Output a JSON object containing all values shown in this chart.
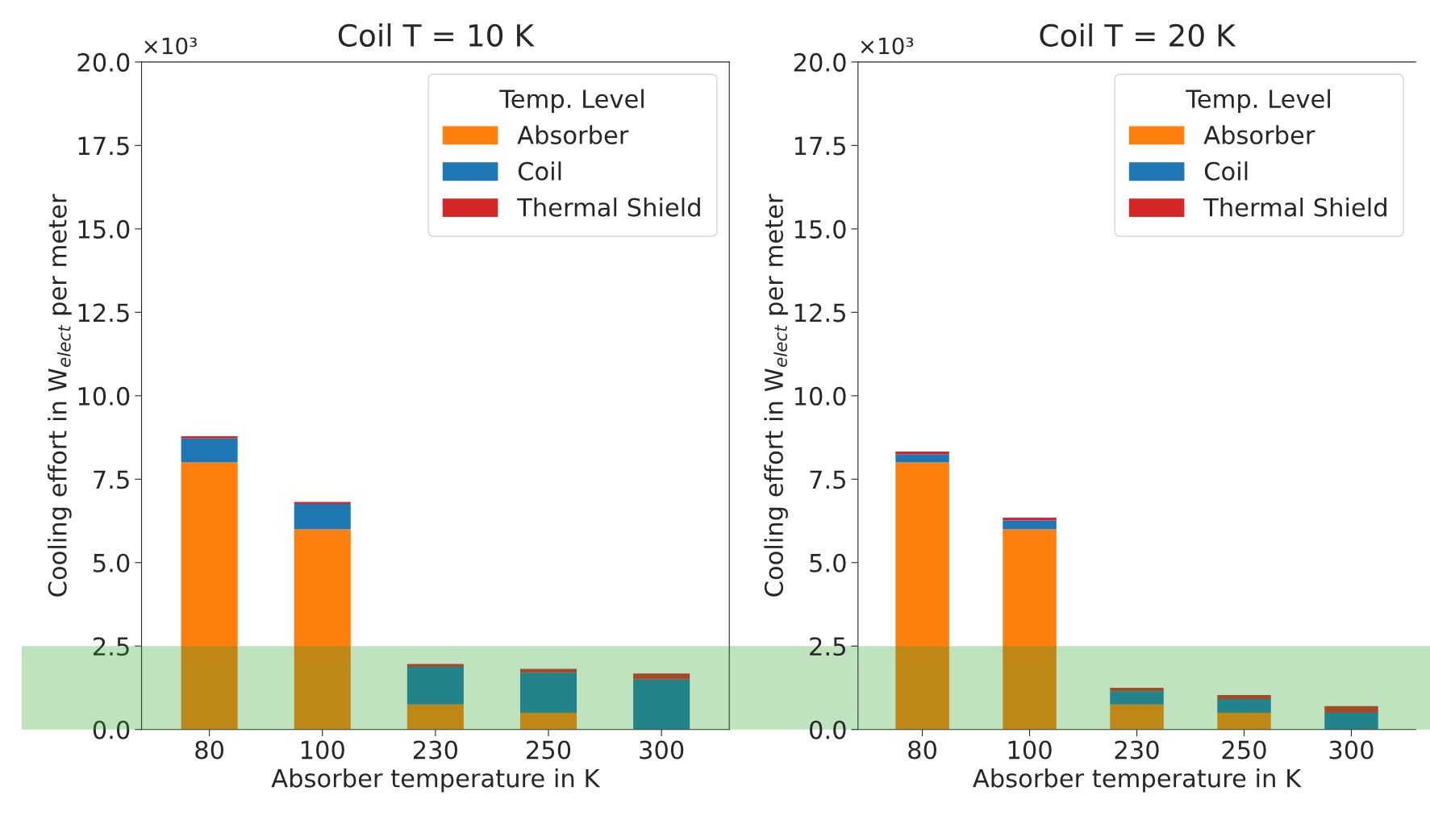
{
  "chart_data": [
    {
      "type": "bar",
      "title": "Coil T = 10 K",
      "xlabel": "Absorber temperature in K",
      "ylabel": "Cooling effort in W$_{elect}$ per meter",
      "annotations": [
        "×10³"
      ],
      "legend_title": "Temp. Level",
      "legend": "top right",
      "stacked": true,
      "categories": [
        "80",
        "100",
        "230",
        "250",
        "300"
      ],
      "series": [
        {
          "name": "Absorber",
          "color": "#ff7f0e",
          "values": [
            8.0,
            6.0,
            0.75,
            0.5,
            0
          ]
        },
        {
          "name": "Coil",
          "color": "#1f77b4",
          "values": [
            0.72,
            0.76,
            1.13,
            1.2,
            1.5
          ]
        },
        {
          "name": "Thermal Shield",
          "color": "#d62728",
          "values": [
            0.07,
            0.06,
            0.08,
            0.12,
            0.18
          ]
        }
      ],
      "ylim": [
        0,
        20
      ],
      "yticks": [
        {
          "value": 0,
          "label": "0.0"
        },
        {
          "value": 2.5,
          "label": "2.5"
        },
        {
          "value": 5,
          "label": "5.0"
        },
        {
          "value": 7.5,
          "label": "7.5"
        },
        {
          "value": 10,
          "label": "10.0"
        },
        {
          "value": 12.5,
          "label": "12.5"
        },
        {
          "value": 15,
          "label": "15.0"
        },
        {
          "value": 17.5,
          "label": "17.5"
        },
        {
          "value": 20,
          "label": "20.0"
        }
      ],
      "bands": [
        {
          "axis": "y",
          "from": 0,
          "to": 2.5,
          "color": "#2ca02c"
        }
      ]
    },
    {
      "type": "bar",
      "title": "Coil T = 20 K",
      "xlabel": "Absorber temperature in K",
      "ylabel": "Cooling effort in W$_{elect}$ per meter",
      "annotations": [
        "×10³"
      ],
      "legend_title": "Temp. Level",
      "legend": "top right",
      "stacked": true,
      "categories": [
        "80",
        "100",
        "230",
        "250",
        "300"
      ],
      "series": [
        {
          "name": "Absorber",
          "color": "#ff7f0e",
          "values": [
            8.0,
            6.0,
            0.75,
            0.5,
            0
          ]
        },
        {
          "name": "Coil",
          "color": "#1f77b4",
          "values": [
            0.25,
            0.27,
            0.4,
            0.41,
            0.5
          ]
        },
        {
          "name": "Thermal Shield",
          "color": "#d62728",
          "values": [
            0.08,
            0.08,
            0.1,
            0.12,
            0.2
          ]
        }
      ],
      "ylim": [
        0,
        20
      ],
      "yticks": [
        {
          "value": 0,
          "label": "0.0"
        },
        {
          "value": 2.5,
          "label": "2.5"
        },
        {
          "value": 5,
          "label": "5.0"
        },
        {
          "value": 7.5,
          "label": "7.5"
        },
        {
          "value": 10,
          "label": "10.0"
        },
        {
          "value": 12.5,
          "label": "12.5"
        },
        {
          "value": 15,
          "label": "15.0"
        },
        {
          "value": 17.5,
          "label": "17.5"
        },
        {
          "value": 20,
          "label": "20.0"
        }
      ],
      "bands": [
        {
          "axis": "y",
          "from": 0,
          "to": 2.5,
          "color": "#2ca02c"
        }
      ]
    }
  ]
}
